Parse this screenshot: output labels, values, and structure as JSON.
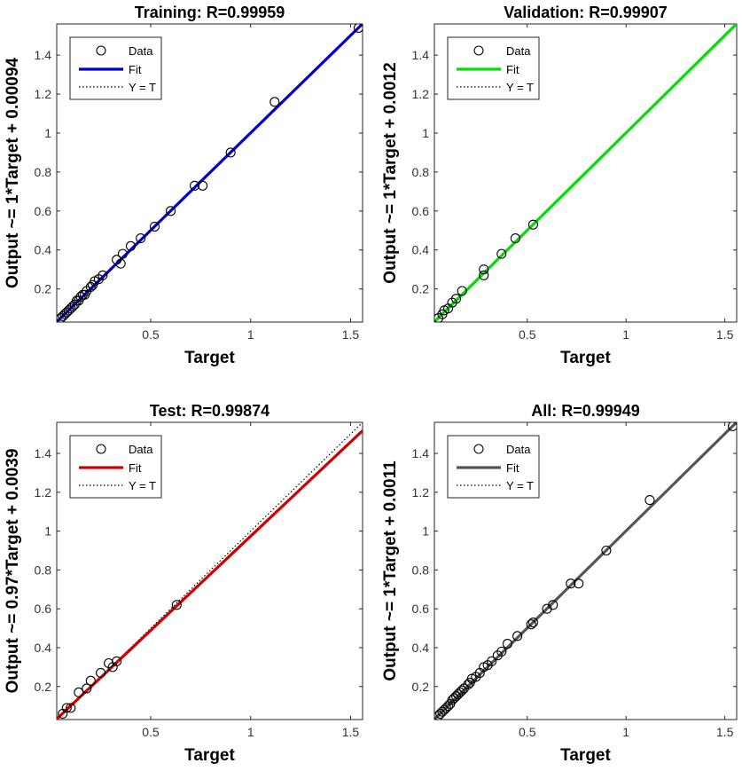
{
  "chart_data": [
    {
      "type": "scatter",
      "title": "Training: R=0.99959",
      "xlabel": "Target",
      "ylabel": "Output ~= 1*Target + 0.00094",
      "xlim": [
        0.03,
        1.56
      ],
      "ylim": [
        0.03,
        1.56
      ],
      "xticks": [
        0.5,
        1,
        1.5
      ],
      "yticks": [
        0.2,
        0.4,
        0.6,
        0.8,
        1,
        1.2,
        1.4
      ],
      "xtick_labels": [
        "0.5",
        "1",
        "1.5"
      ],
      "ytick_labels": [
        "0.2",
        "0.4",
        "0.6",
        "0.8",
        "1",
        "1.2",
        "1.4"
      ],
      "legend": {
        "position": "top-left",
        "entries": [
          "Data",
          "Fit",
          "Y = T"
        ]
      },
      "fit": {
        "slope": 1,
        "intercept": 0.00094,
        "color": "#0000cc"
      },
      "points": [
        [
          0.05,
          0.05
        ],
        [
          0.06,
          0.06
        ],
        [
          0.07,
          0.07
        ],
        [
          0.08,
          0.08
        ],
        [
          0.09,
          0.09
        ],
        [
          0.1,
          0.1
        ],
        [
          0.11,
          0.11
        ],
        [
          0.12,
          0.12
        ],
        [
          0.13,
          0.14
        ],
        [
          0.14,
          0.14
        ],
        [
          0.15,
          0.16
        ],
        [
          0.16,
          0.17
        ],
        [
          0.17,
          0.17
        ],
        [
          0.18,
          0.19
        ],
        [
          0.2,
          0.21
        ],
        [
          0.21,
          0.22
        ],
        [
          0.22,
          0.24
        ],
        [
          0.24,
          0.25
        ],
        [
          0.26,
          0.27
        ],
        [
          0.33,
          0.35
        ],
        [
          0.35,
          0.33
        ],
        [
          0.36,
          0.38
        ],
        [
          0.4,
          0.42
        ],
        [
          0.45,
          0.46
        ],
        [
          0.52,
          0.52
        ],
        [
          0.6,
          0.6
        ],
        [
          0.72,
          0.73
        ],
        [
          0.76,
          0.73
        ],
        [
          0.9,
          0.9
        ],
        [
          1.12,
          1.16
        ],
        [
          1.54,
          1.54
        ]
      ]
    },
    {
      "type": "scatter",
      "title": "Validation: R=0.99907",
      "xlabel": "Target",
      "ylabel": "Output ~= 1*Target + 0.0012",
      "xlim": [
        0.03,
        1.56
      ],
      "ylim": [
        0.03,
        1.56
      ],
      "xticks": [
        0.5,
        1,
        1.5
      ],
      "yticks": [
        0.2,
        0.4,
        0.6,
        0.8,
        1,
        1.2,
        1.4
      ],
      "xtick_labels": [
        "0.5",
        "1",
        "1.5"
      ],
      "ytick_labels": [
        "0.2",
        "0.4",
        "0.6",
        "0.8",
        "1",
        "1.2",
        "1.4"
      ],
      "legend": {
        "position": "top-left",
        "entries": [
          "Data",
          "Fit",
          "Y = T"
        ]
      },
      "fit": {
        "slope": 1,
        "intercept": 0.0012,
        "color": "#00e000"
      },
      "points": [
        [
          0.05,
          0.05
        ],
        [
          0.07,
          0.07
        ],
        [
          0.08,
          0.09
        ],
        [
          0.1,
          0.1
        ],
        [
          0.12,
          0.13
        ],
        [
          0.14,
          0.15
        ],
        [
          0.17,
          0.19
        ],
        [
          0.28,
          0.27
        ],
        [
          0.28,
          0.3
        ],
        [
          0.37,
          0.38
        ],
        [
          0.44,
          0.46
        ],
        [
          0.53,
          0.53
        ]
      ]
    },
    {
      "type": "scatter",
      "title": "Test: R=0.99874",
      "xlabel": "Target",
      "ylabel": "Output ~= 0.97*Target + 0.0039",
      "xlim": [
        0.03,
        1.56
      ],
      "ylim": [
        0.03,
        1.56
      ],
      "xticks": [
        0.5,
        1,
        1.5
      ],
      "yticks": [
        0.2,
        0.4,
        0.6,
        0.8,
        1,
        1.2,
        1.4
      ],
      "xtick_labels": [
        "0.5",
        "1",
        "1.5"
      ],
      "ytick_labels": [
        "0.2",
        "0.4",
        "0.6",
        "0.8",
        "1",
        "1.2",
        "1.4"
      ],
      "legend": {
        "position": "top-left",
        "entries": [
          "Data",
          "Fit",
          "Y = T"
        ]
      },
      "fit": {
        "slope": 0.97,
        "intercept": 0.0039,
        "color": "#d00000"
      },
      "points": [
        [
          0.06,
          0.06
        ],
        [
          0.08,
          0.09
        ],
        [
          0.1,
          0.09
        ],
        [
          0.14,
          0.17
        ],
        [
          0.18,
          0.19
        ],
        [
          0.2,
          0.23
        ],
        [
          0.25,
          0.27
        ],
        [
          0.29,
          0.32
        ],
        [
          0.31,
          0.3
        ],
        [
          0.33,
          0.33
        ],
        [
          0.63,
          0.62
        ]
      ]
    },
    {
      "type": "scatter",
      "title": "All: R=0.99949",
      "xlabel": "Target",
      "ylabel": "Output ~= 1*Target + 0.0011",
      "xlim": [
        0.03,
        1.56
      ],
      "ylim": [
        0.03,
        1.56
      ],
      "xticks": [
        0.5,
        1,
        1.5
      ],
      "yticks": [
        0.2,
        0.4,
        0.6,
        0.8,
        1,
        1.2,
        1.4
      ],
      "xtick_labels": [
        "0.5",
        "1",
        "1.5"
      ],
      "ytick_labels": [
        "0.2",
        "0.4",
        "0.6",
        "0.8",
        "1",
        "1.2",
        "1.4"
      ],
      "legend": {
        "position": "top-left",
        "entries": [
          "Data",
          "Fit",
          "Y = T"
        ]
      },
      "fit": {
        "slope": 1,
        "intercept": 0.0011,
        "color": "#555555"
      },
      "points": [
        [
          0.05,
          0.05
        ],
        [
          0.06,
          0.06
        ],
        [
          0.07,
          0.07
        ],
        [
          0.08,
          0.08
        ],
        [
          0.09,
          0.09
        ],
        [
          0.1,
          0.1
        ],
        [
          0.11,
          0.11
        ],
        [
          0.12,
          0.13
        ],
        [
          0.13,
          0.14
        ],
        [
          0.14,
          0.15
        ],
        [
          0.15,
          0.16
        ],
        [
          0.16,
          0.17
        ],
        [
          0.17,
          0.18
        ],
        [
          0.18,
          0.19
        ],
        [
          0.2,
          0.21
        ],
        [
          0.21,
          0.22
        ],
        [
          0.22,
          0.24
        ],
        [
          0.24,
          0.25
        ],
        [
          0.26,
          0.27
        ],
        [
          0.28,
          0.3
        ],
        [
          0.3,
          0.31
        ],
        [
          0.32,
          0.33
        ],
        [
          0.35,
          0.36
        ],
        [
          0.37,
          0.38
        ],
        [
          0.4,
          0.42
        ],
        [
          0.45,
          0.46
        ],
        [
          0.52,
          0.52
        ],
        [
          0.53,
          0.53
        ],
        [
          0.6,
          0.6
        ],
        [
          0.63,
          0.62
        ],
        [
          0.72,
          0.73
        ],
        [
          0.76,
          0.73
        ],
        [
          0.9,
          0.9
        ],
        [
          1.12,
          1.16
        ],
        [
          1.54,
          1.54
        ]
      ]
    }
  ]
}
